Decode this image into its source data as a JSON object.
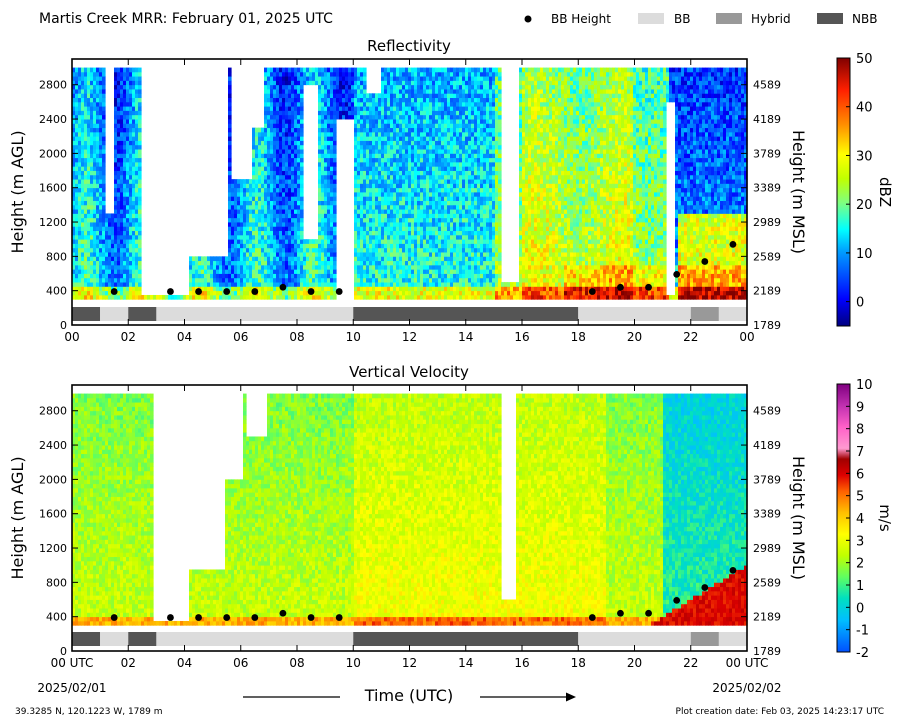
{
  "page": {
    "title": "Martis Creek MRR:  February 01, 2025 UTC",
    "footer_left": "39.3285 N, 120.1223 W, 1789 m",
    "footer_right": "Plot creation date: Feb 03, 2025 14:23:17 UTC",
    "date_start": "2025/02/01",
    "date_end": "2025/02/02",
    "time_axis_label": "Time (UTC)"
  },
  "legend": [
    {
      "label": "BB Height",
      "kind": "marker",
      "color": "#000000"
    },
    {
      "label": "BB",
      "kind": "swatch",
      "color": "#dcdcdc"
    },
    {
      "label": "Hybrid",
      "kind": "swatch",
      "color": "#999999"
    },
    {
      "label": "NBB",
      "kind": "swatch",
      "color": "#555555"
    }
  ],
  "chart_data": [
    {
      "type": "heatmap",
      "title": "Reflectivity",
      "xlabel": "",
      "ylabel": "Height (m AGL)",
      "ylabel_right": "Height (m MSL)",
      "colorbar_label": "dBZ",
      "xlim": [
        0,
        24
      ],
      "ylim": [
        0,
        3100
      ],
      "x_ticks": [
        "00",
        "02",
        "04",
        "06",
        "08",
        "10",
        "12",
        "14",
        "16",
        "18",
        "20",
        "22",
        "00"
      ],
      "y_ticks": [
        0,
        400,
        800,
        1200,
        1600,
        2000,
        2400,
        2800
      ],
      "y_ticks_msl": [
        "1789",
        "2189",
        "2589",
        "2989",
        "3389",
        "3789",
        "4189",
        "4589"
      ],
      "colorbar": {
        "min": -5,
        "max": 50,
        "ticks": [
          0,
          10,
          20,
          30,
          40,
          50
        ]
      },
      "bb_height": {
        "x": [
          1.5,
          3.5,
          4.5,
          5.5,
          6.5,
          7.5,
          8.5,
          9.5,
          18.5,
          19.5,
          20.5,
          21.5,
          22.5,
          23.5
        ],
        "y": [
          390,
          390,
          390,
          390,
          390,
          440,
          390,
          390,
          390,
          440,
          440,
          590,
          740,
          940
        ]
      },
      "bb_type": [
        {
          "start": 0,
          "end": 1,
          "type": "NBB"
        },
        {
          "start": 1,
          "end": 2,
          "type": "BB"
        },
        {
          "start": 2,
          "end": 3,
          "type": "NBB"
        },
        {
          "start": 3,
          "end": 10,
          "type": "BB"
        },
        {
          "start": 10,
          "end": 18,
          "type": "NBB"
        },
        {
          "start": 18,
          "end": 22,
          "type": "BB"
        },
        {
          "start": 22,
          "end": 23,
          "type": "Hybrid"
        },
        {
          "start": 23,
          "end": 24,
          "type": "BB"
        }
      ]
    },
    {
      "type": "heatmap",
      "title": "Vertical Velocity",
      "xlabel": "Time (UTC)",
      "ylabel": "Height (m AGL)",
      "ylabel_right": "Height (m MSL)",
      "colorbar_label": "m/s",
      "xlim": [
        0,
        24
      ],
      "ylim": [
        0,
        3100
      ],
      "x_ticks": [
        "00 UTC",
        "02",
        "04",
        "06",
        "08",
        "10",
        "12",
        "14",
        "16",
        "18",
        "20",
        "22",
        "00 UTC"
      ],
      "y_ticks": [
        0,
        400,
        800,
        1200,
        1600,
        2000,
        2400,
        2800
      ],
      "y_ticks_msl": [
        "1789",
        "2189",
        "2589",
        "2989",
        "3389",
        "3789",
        "4189",
        "4589"
      ],
      "colorbar": {
        "min": -2,
        "max": 10,
        "ticks": [
          -2,
          -1,
          0,
          1,
          2,
          3,
          4,
          5,
          6,
          7,
          8,
          9,
          10
        ]
      },
      "bb_height": {
        "x": [
          1.5,
          3.5,
          4.5,
          5.5,
          6.5,
          7.5,
          8.5,
          9.5,
          18.5,
          19.5,
          20.5,
          21.5,
          22.5,
          23.5
        ],
        "y": [
          390,
          390,
          390,
          390,
          390,
          440,
          390,
          390,
          390,
          440,
          440,
          590,
          740,
          940
        ]
      },
      "bb_type": [
        {
          "start": 0,
          "end": 1,
          "type": "NBB"
        },
        {
          "start": 1,
          "end": 2,
          "type": "BB"
        },
        {
          "start": 2,
          "end": 3,
          "type": "NBB"
        },
        {
          "start": 3,
          "end": 10,
          "type": "BB"
        },
        {
          "start": 10,
          "end": 18,
          "type": "NBB"
        },
        {
          "start": 18,
          "end": 22,
          "type": "BB"
        },
        {
          "start": 22,
          "end": 23,
          "type": "Hybrid"
        },
        {
          "start": 23,
          "end": 24,
          "type": "BB"
        }
      ]
    }
  ]
}
